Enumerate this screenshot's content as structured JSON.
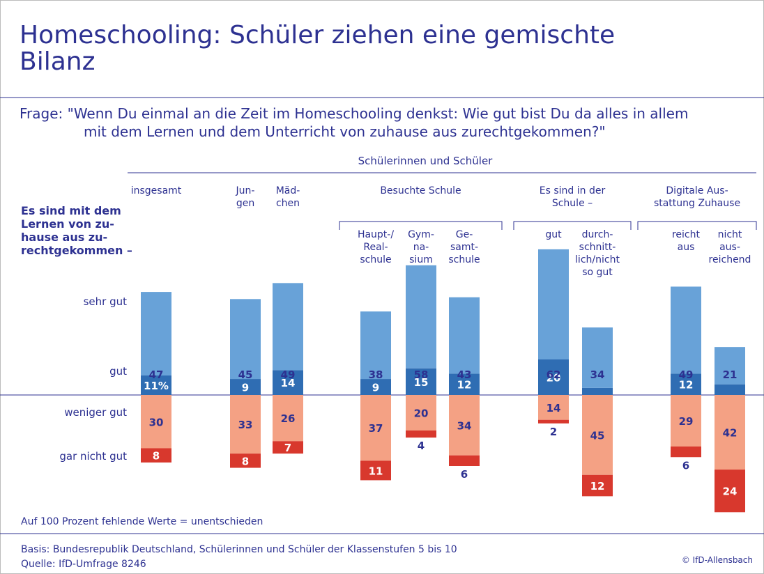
{
  "chart_data": {
    "type": "bar",
    "title": "Homeschooling: Schüler ziehen eine gemischte\nBilanz",
    "question": "Frage: \"Wenn Du einmal an die Zeit im Homeschooling denkst: Wie gut bist Du da alles in allem\nmit dem Lernen und dem Unterricht von zuhause aus zurechtgekommen?\"",
    "header": "Schülerinnen und Schüler",
    "row_header": "Es sind mit dem\nLernen von zu-\nhause aus zu-\nrechtgekommen –",
    "group_labels": [
      "Besuchte Schule",
      "Es sind in der\nSchule –",
      "Digitale Aus-\nstattung Zuhause"
    ],
    "categories": [
      "insgesamt",
      "Jun-\ngen",
      "Mäd-\nchen",
      "Haupt-/\nReal-\nschule",
      "Gym-\nna-\nsium",
      "Ge-\nsamt-\nschule",
      "gut",
      "durch-\nschnitt-\nlich/nicht\nso gut",
      "reicht\naus",
      "nicht\naus-\nreichend"
    ],
    "series": [
      {
        "name": "sehr gut",
        "color": "#2f6db3",
        "values": [
          11,
          9,
          14,
          9,
          15,
          12,
          20,
          4,
          12,
          6
        ],
        "value_labels": [
          "11%",
          "9",
          "14",
          "9",
          "15",
          "12",
          "20",
          "4",
          "12",
          "6"
        ]
      },
      {
        "name": "gut",
        "color": "#68a2d8",
        "values": [
          47,
          45,
          49,
          38,
          58,
          43,
          62,
          34,
          49,
          21
        ]
      },
      {
        "name": "weniger gut",
        "color": "#f4a184",
        "values": [
          30,
          33,
          26,
          37,
          20,
          34,
          14,
          45,
          29,
          42
        ]
      },
      {
        "name": "gar nicht gut",
        "color": "#d8382d",
        "values": [
          8,
          8,
          7,
          11,
          4,
          6,
          2,
          12,
          6,
          24
        ]
      }
    ],
    "note": "Auf 100 Prozent fehlende Werte = unentschieden",
    "basis": "Basis: Bundesrepublik Deutschland, Schülerinnen und Schüler der Klassenstufen 5 bis 10",
    "source": "Quelle: IfD-Umfrage 8246",
    "credit": "© IfD-Allensbach"
  }
}
